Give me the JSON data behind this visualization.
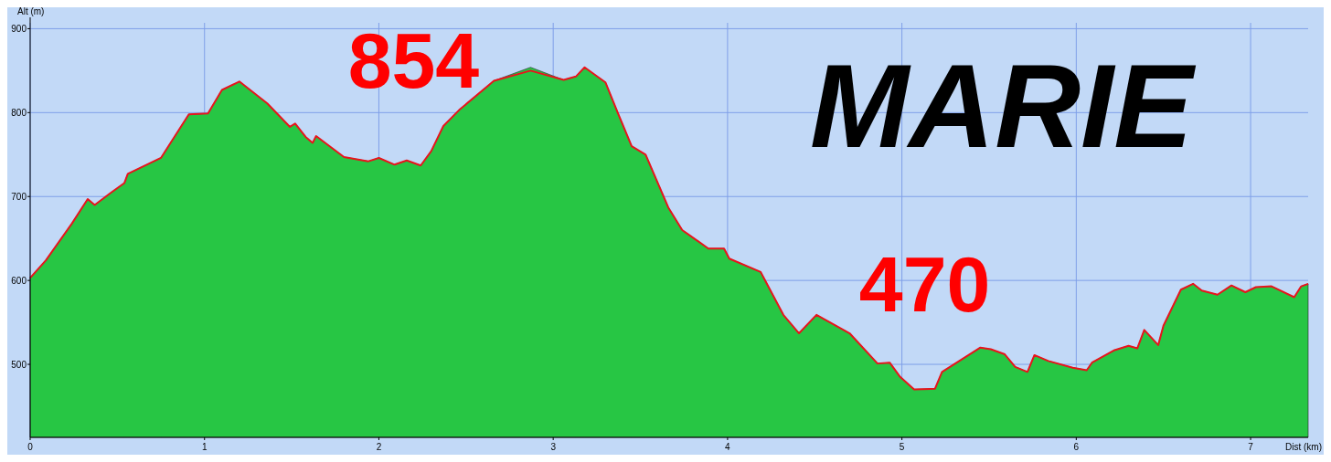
{
  "chart_data": {
    "type": "area",
    "xlabel": "Dist (km)",
    "ylabel": "Alt (m)",
    "x": [
      0,
      0.09,
      0.24,
      0.33,
      0.37,
      0.46,
      0.54,
      0.56,
      0.75,
      0.91,
      1.02,
      1.1,
      1.2,
      1.36,
      1.49,
      1.52,
      1.58,
      1.62,
      1.64,
      1.8,
      1.94,
      2.0,
      2.09,
      2.16,
      2.24,
      2.3,
      2.37,
      2.46,
      2.66,
      2.87,
      3.06,
      3.13,
      3.18,
      3.3,
      3.37,
      3.45,
      3.53,
      3.66,
      3.74,
      3.89,
      3.98,
      4.01,
      4.19,
      4.32,
      4.41,
      4.51,
      4.63,
      4.7,
      4.86,
      4.93,
      4.99,
      5.07,
      5.19,
      5.23,
      5.45,
      5.51,
      5.59,
      5.65,
      5.72,
      5.76,
      5.84,
      5.98,
      6.06,
      6.09,
      6.22,
      6.3,
      6.35,
      6.39,
      6.47,
      6.5,
      6.6,
      6.67,
      6.72,
      6.81,
      6.89,
      6.97,
      7.03,
      7.12,
      7.17,
      7.25,
      7.29,
      7.33
    ],
    "series": [
      {
        "color": "#27c644",
        "values": [
          603,
          624,
          668,
          697,
          690,
          704,
          716,
          727,
          746,
          798,
          799,
          827,
          837,
          811,
          783,
          787,
          771,
          764,
          772,
          747,
          742,
          746,
          738,
          743,
          737,
          754,
          784,
          803,
          838,
          854,
          839,
          843,
          854,
          836,
          800,
          760,
          750,
          687,
          660,
          638,
          638,
          626,
          610,
          559,
          537,
          559,
          545,
          537,
          501,
          502,
          485,
          470,
          471,
          491,
          520,
          518,
          512,
          497,
          491,
          511,
          504,
          496,
          493,
          502,
          517,
          522,
          519,
          541,
          523,
          546,
          589,
          596,
          588,
          583,
          594,
          586,
          592,
          593,
          588,
          580,
          593,
          596
        ]
      },
      {
        "type": "line",
        "color": "#e8141c",
        "values": [
          603,
          624,
          668,
          697,
          690,
          704,
          716,
          727,
          746,
          798,
          799,
          827,
          837,
          811,
          783,
          787,
          771,
          764,
          772,
          747,
          742,
          746,
          738,
          743,
          737,
          754,
          784,
          803,
          838,
          850,
          839,
          843,
          854,
          836,
          800,
          760,
          750,
          687,
          660,
          638,
          638,
          626,
          610,
          559,
          537,
          559,
          545,
          537,
          501,
          502,
          485,
          470,
          471,
          491,
          520,
          518,
          512,
          497,
          491,
          511,
          504,
          496,
          493,
          502,
          517,
          522,
          519,
          541,
          523,
          546,
          589,
          596,
          588,
          583,
          594,
          586,
          592,
          593,
          588,
          580,
          593,
          596
        ]
      }
    ],
    "xlim": [
      0,
      7.33
    ],
    "ylim": [
      413,
      907
    ],
    "xticks": [
      0,
      1,
      2,
      3,
      4,
      5,
      6,
      7
    ],
    "yticks": [
      500,
      600,
      700,
      800,
      900
    ],
    "grid": true,
    "annotations": [
      "854",
      "470",
      "MARIE"
    ]
  }
}
